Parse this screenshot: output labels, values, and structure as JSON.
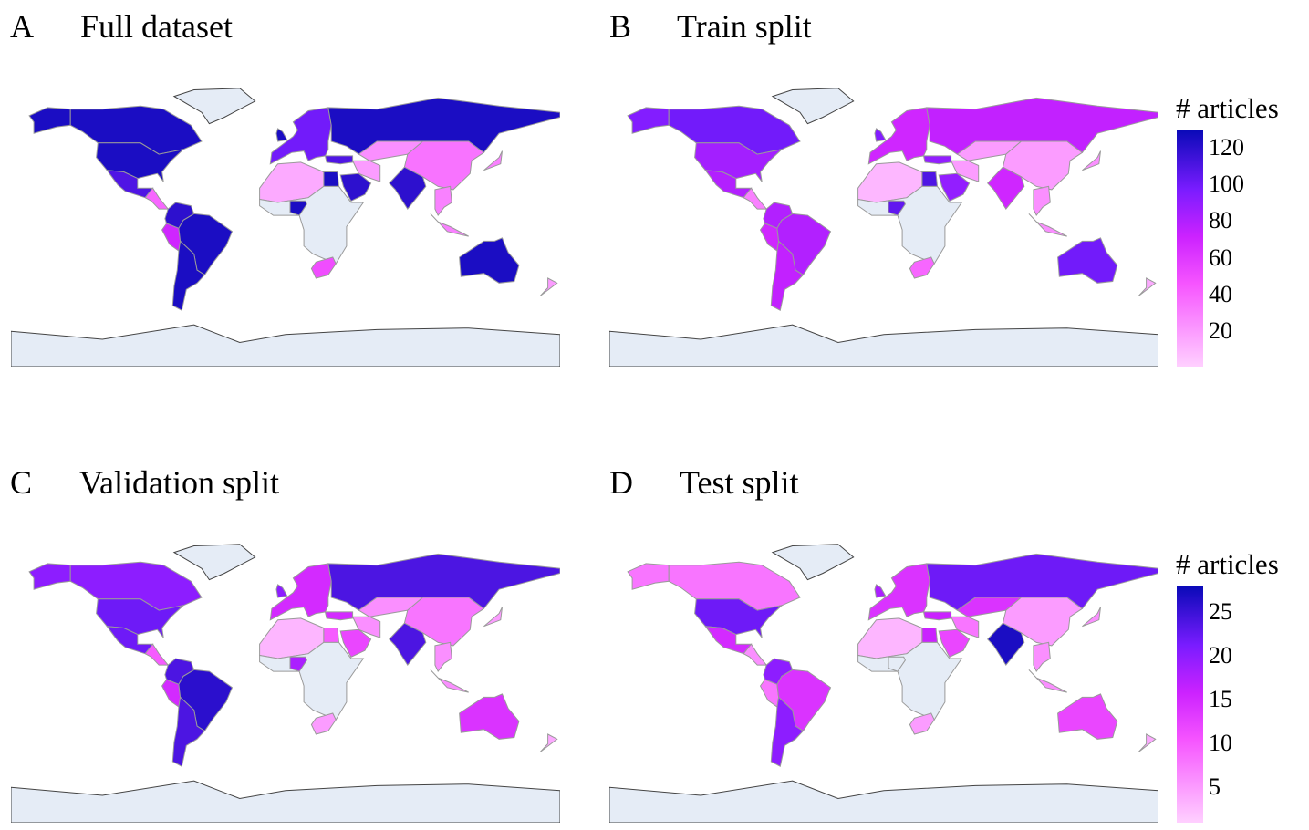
{
  "panels": [
    {
      "letter": "A",
      "title": "Full dataset"
    },
    {
      "letter": "B",
      "title": "Train split"
    },
    {
      "letter": "C",
      "title": "Validation split"
    },
    {
      "letter": "D",
      "title": "Test split"
    }
  ],
  "colorbars": [
    {
      "title": "# articles",
      "ticks": [
        20,
        40,
        60,
        80,
        100,
        120
      ],
      "range": [
        1,
        130
      ]
    },
    {
      "title": "# articles",
      "ticks": [
        5,
        10,
        15,
        20,
        25
      ],
      "range": [
        1,
        28
      ]
    }
  ],
  "colors": {
    "no_data": "#e5ecf6",
    "ocean": "#ffffff",
    "border": "#9a9a9a",
    "coast": "#444444",
    "scale": [
      "#ffd0ff",
      "#f655ff",
      "#cc22ff",
      "#7a1cff",
      "#0a0ab8"
    ]
  },
  "chart_data": {
    "type": "choropleth",
    "projection": "equirectangular",
    "regions": [
      {
        "name": "Alaska",
        "values": [
          125,
          95,
          20,
          8
        ]
      },
      {
        "name": "Canada",
        "values": [
          125,
          100,
          20,
          8
        ]
      },
      {
        "name": "United States",
        "values": [
          125,
          85,
          22,
          22
        ]
      },
      {
        "name": "Mexico",
        "values": [
          110,
          80,
          22,
          15
        ]
      },
      {
        "name": "Central America",
        "values": [
          40,
          30,
          10,
          6
        ]
      },
      {
        "name": "Colombia/Venezuela",
        "values": [
          120,
          80,
          24,
          20
        ]
      },
      {
        "name": "Peru",
        "values": [
          70,
          70,
          15,
          8
        ]
      },
      {
        "name": "Brazil",
        "values": [
          125,
          80,
          26,
          14
        ]
      },
      {
        "name": "Argentina/Chile",
        "values": [
          125,
          75,
          24,
          20
        ]
      },
      {
        "name": "Greenland",
        "values": [
          0,
          0,
          0,
          0
        ]
      },
      {
        "name": "Europe",
        "values": [
          100,
          70,
          15,
          14
        ]
      },
      {
        "name": "United Kingdom",
        "values": [
          125,
          95,
          20,
          18
        ]
      },
      {
        "name": "Russia",
        "values": [
          125,
          75,
          24,
          22
        ]
      },
      {
        "name": "Kazakhstan",
        "values": [
          25,
          20,
          6,
          14
        ]
      },
      {
        "name": "China",
        "values": [
          35,
          20,
          8,
          5
        ]
      },
      {
        "name": "India",
        "values": [
          120,
          70,
          24,
          27
        ]
      },
      {
        "name": "Iran",
        "values": [
          20,
          20,
          6,
          8
        ]
      },
      {
        "name": "Turkey",
        "values": [
          110,
          90,
          15,
          16
        ]
      },
      {
        "name": "Saudi Arabia",
        "values": [
          120,
          90,
          12,
          12
        ]
      },
      {
        "name": "Egypt",
        "values": [
          125,
          110,
          10,
          16
        ]
      },
      {
        "name": "North Africa",
        "values": [
          15,
          10,
          3,
          3
        ]
      },
      {
        "name": "Sub-Saharan Africa",
        "values": [
          0,
          0,
          0,
          0
        ]
      },
      {
        "name": "Nigeria",
        "values": [
          125,
          105,
          18,
          0
        ]
      },
      {
        "name": "South Africa",
        "values": [
          50,
          40,
          5,
          5
        ]
      },
      {
        "name": "Southeast Asia",
        "values": [
          30,
          25,
          6,
          6
        ]
      },
      {
        "name": "Indonesia",
        "values": [
          30,
          25,
          6,
          6
        ]
      },
      {
        "name": "Japan",
        "values": [
          30,
          25,
          5,
          6
        ]
      },
      {
        "name": "Australia",
        "values": [
          125,
          100,
          14,
          12
        ]
      },
      {
        "name": "New Zealand",
        "values": [
          20,
          15,
          4,
          4
        ]
      },
      {
        "name": "Antarctica",
        "values": [
          0,
          0,
          0,
          0
        ]
      }
    ]
  }
}
